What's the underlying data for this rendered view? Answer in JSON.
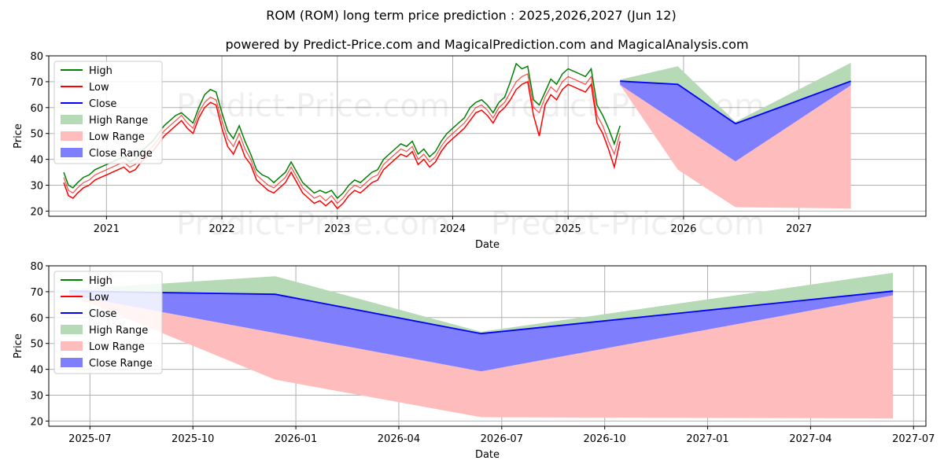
{
  "chart_data": [
    {
      "type": "line",
      "title": "ROM (ROM) long term price prediction : 2025,2026,2027 (Jun 12)",
      "subtitle": "powered by Predict-Price.com and MagicalPrediction.com and MagicalAnalysis.com",
      "xlabel": "Date",
      "ylabel": "Price",
      "xlim": [
        2020.5,
        2028.1
      ],
      "ylim": [
        18,
        80
      ],
      "yticks": [
        20,
        30,
        40,
        50,
        60,
        70,
        80
      ],
      "xticks": [
        {
          "x": 2021.0,
          "label": "2021"
        },
        {
          "x": 2022.0,
          "label": "2022"
        },
        {
          "x": 2023.0,
          "label": "2023"
        },
        {
          "x": 2024.0,
          "label": "2024"
        },
        {
          "x": 2025.0,
          "label": "2025"
        },
        {
          "x": 2026.0,
          "label": "2026"
        },
        {
          "x": 2027.0,
          "label": "2027"
        }
      ],
      "grid": true,
      "legend": "top-left",
      "watermarks": [
        "Predict-Price.com",
        "Predict-Price.com",
        "Predict-Price.com",
        "Predict-Price.com"
      ],
      "history_x": [
        2020.63,
        2020.67,
        2020.71,
        2020.75,
        2020.8,
        2020.85,
        2020.9,
        2020.95,
        2021.0,
        2021.05,
        2021.1,
        2021.15,
        2021.2,
        2021.25,
        2021.3,
        2021.35,
        2021.4,
        2021.45,
        2021.5,
        2021.55,
        2021.6,
        2021.65,
        2021.7,
        2021.75,
        2021.8,
        2021.85,
        2021.9,
        2021.95,
        2022.0,
        2022.05,
        2022.1,
        2022.15,
        2022.2,
        2022.25,
        2022.3,
        2022.35,
        2022.4,
        2022.45,
        2022.5,
        2022.55,
        2022.6,
        2022.65,
        2022.7,
        2022.75,
        2022.8,
        2022.85,
        2022.9,
        2022.95,
        2023.0,
        2023.05,
        2023.1,
        2023.15,
        2023.2,
        2023.25,
        2023.3,
        2023.35,
        2023.4,
        2023.45,
        2023.5,
        2023.55,
        2023.6,
        2023.65,
        2023.7,
        2023.75,
        2023.8,
        2023.85,
        2023.9,
        2023.95,
        2024.0,
        2024.05,
        2024.1,
        2024.15,
        2024.2,
        2024.25,
        2024.3,
        2024.35,
        2024.4,
        2024.45,
        2024.5,
        2024.55,
        2024.6,
        2024.65,
        2024.7,
        2024.75,
        2024.8,
        2024.85,
        2024.9,
        2024.95,
        2025.0,
        2025.05,
        2025.1,
        2025.15,
        2025.2,
        2025.25,
        2025.3,
        2025.35,
        2025.4,
        2025.45
      ],
      "history_close": [
        33,
        28,
        27,
        29,
        31,
        32,
        34,
        35,
        36,
        37,
        38,
        39,
        37,
        38,
        41,
        43,
        45,
        48,
        51,
        53,
        55,
        57,
        54,
        52,
        58,
        62,
        64,
        63,
        55,
        48,
        45,
        50,
        44,
        40,
        34,
        32,
        30,
        29,
        31,
        33,
        37,
        33,
        29,
        27,
        25,
        26,
        24,
        26,
        23,
        25,
        28,
        30,
        29,
        31,
        33,
        34,
        38,
        40,
        42,
        44,
        43,
        45,
        40,
        42,
        39,
        41,
        45,
        48,
        50,
        52,
        54,
        57,
        60,
        61,
        59,
        56,
        60,
        62,
        66,
        70,
        72,
        73,
        60,
        58,
        64,
        68,
        66,
        70,
        72,
        71,
        70,
        69,
        72,
        57,
        53,
        47,
        42,
        50
      ],
      "history_high": [
        35,
        30,
        29,
        31,
        33,
        34,
        36,
        37,
        38,
        39,
        40,
        41,
        39,
        40,
        43,
        45,
        47,
        50,
        53,
        55,
        57,
        58,
        56,
        54,
        60,
        65,
        67,
        66,
        58,
        51,
        48,
        53,
        47,
        42,
        36,
        34,
        33,
        31,
        33,
        35,
        39,
        35,
        31,
        29,
        27,
        28,
        27,
        28,
        25,
        27,
        30,
        32,
        31,
        33,
        35,
        36,
        40,
        42,
        44,
        46,
        45,
        47,
        42,
        44,
        41,
        43,
        47,
        50,
        52,
        54,
        56,
        60,
        62,
        63,
        61,
        58,
        62,
        64,
        70,
        77,
        75,
        76,
        63,
        61,
        66,
        71,
        69,
        73,
        75,
        74,
        73,
        72,
        75,
        61,
        57,
        52,
        46,
        53
      ],
      "history_low": [
        31,
        26,
        25,
        27,
        29,
        30,
        32,
        33,
        34,
        35,
        36,
        37,
        35,
        36,
        39,
        41,
        43,
        46,
        49,
        51,
        53,
        55,
        52,
        50,
        56,
        60,
        62,
        61,
        52,
        45,
        42,
        47,
        41,
        38,
        32,
        30,
        28,
        27,
        29,
        31,
        35,
        31,
        27,
        25,
        23,
        24,
        22,
        24,
        21,
        23,
        26,
        28,
        27,
        29,
        31,
        32,
        36,
        38,
        40,
        42,
        41,
        43,
        38,
        40,
        37,
        39,
        43,
        46,
        48,
        50,
        52,
        55,
        58,
        59,
        57,
        54,
        58,
        60,
        63,
        67,
        69,
        70,
        57,
        49,
        61,
        65,
        63,
        67,
        69,
        68,
        67,
        66,
        69,
        54,
        50,
        44,
        37,
        47
      ],
      "forecast_x": [
        2025.45,
        2025.95,
        2026.45,
        2027.45
      ],
      "forecast_close": [
        70.2,
        69.0,
        53.8,
        70.2
      ],
      "forecast_high": [
        70.8,
        76.0,
        54.5,
        77.3
      ],
      "forecast_low": [
        68.8,
        36.0,
        21.5,
        21.0
      ],
      "forecast_close_low": [
        68.8,
        54.0,
        39.2,
        68.6
      ]
    },
    {
      "type": "line",
      "xlabel": "Date",
      "ylabel": "Price",
      "xlim": [
        2025.4,
        2027.53
      ],
      "ylim": [
        18,
        80
      ],
      "yticks": [
        20,
        30,
        40,
        50,
        60,
        70,
        80
      ],
      "xticks": [
        {
          "x": 2025.5,
          "label": "2025-07"
        },
        {
          "x": 2025.75,
          "label": "2025-10"
        },
        {
          "x": 2026.0,
          "label": "2026-01"
        },
        {
          "x": 2026.25,
          "label": "2026-04"
        },
        {
          "x": 2026.5,
          "label": "2026-07"
        },
        {
          "x": 2026.75,
          "label": "2026-10"
        },
        {
          "x": 2027.0,
          "label": "2027-01"
        },
        {
          "x": 2027.25,
          "label": "2027-04"
        },
        {
          "x": 2027.5,
          "label": "2027-07"
        }
      ],
      "grid": true,
      "legend": "top-left",
      "watermarks": [
        "Predict-Price.com"
      ],
      "forecast_x": [
        2025.45,
        2025.95,
        2026.45,
        2027.45
      ],
      "forecast_close": [
        70.2,
        69.0,
        53.8,
        70.2
      ],
      "forecast_high": [
        70.8,
        76.0,
        54.5,
        77.3
      ],
      "forecast_low": [
        68.8,
        36.0,
        21.5,
        21.0
      ],
      "forecast_close_low": [
        68.8,
        54.0,
        39.2,
        68.6
      ]
    }
  ],
  "legend": {
    "items": [
      {
        "label": "High",
        "kind": "line",
        "color": "#008000"
      },
      {
        "label": "Low",
        "kind": "line",
        "color": "#ff0000"
      },
      {
        "label": "Close",
        "kind": "line",
        "color": "#0000ff"
      },
      {
        "label": "High Range",
        "kind": "patch",
        "color": "#b5dab5"
      },
      {
        "label": "Low Range",
        "kind": "patch",
        "color": "#ffbcbc"
      },
      {
        "label": "Close Range",
        "kind": "patch",
        "color": "#7f7ffe"
      }
    ]
  },
  "colors": {
    "high": "#008000",
    "low": "#ff0000",
    "close": "#0000ff",
    "high_range": "#b5dab5",
    "low_range": "#ffbcbc",
    "close_range": "#7f7ffe",
    "grid": "#b0b0b0"
  }
}
